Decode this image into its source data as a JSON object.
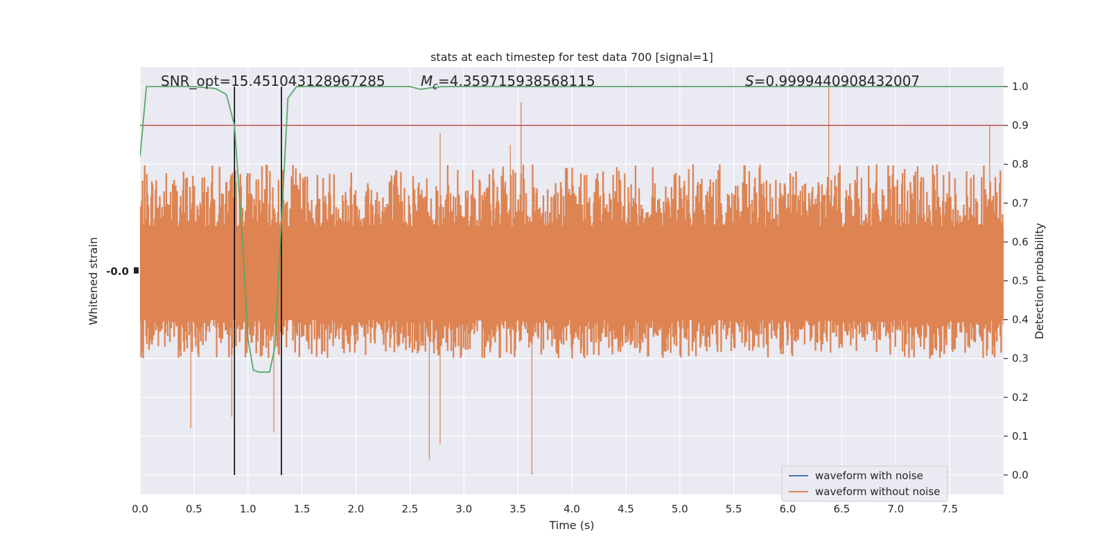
{
  "chart_data": {
    "type": "line",
    "title": "stats at each timestep for test data 700 [signal=1]",
    "xlabel": "Time (s)",
    "ylabel_left": "Whitened strain",
    "ylabel_right": "Detection probability",
    "xlim": [
      0.0,
      8.0
    ],
    "ylim_right": [
      -0.05,
      1.05
    ],
    "x_ticks": [
      "0.0",
      "0.5",
      "1.0",
      "1.5",
      "2.0",
      "2.5",
      "3.0",
      "3.5",
      "4.0",
      "4.5",
      "5.0",
      "5.5",
      "6.0",
      "6.5",
      "7.0",
      "7.5"
    ],
    "x_tick_values": [
      0.0,
      0.5,
      1.0,
      1.5,
      2.0,
      2.5,
      3.0,
      3.5,
      4.0,
      4.5,
      5.0,
      5.5,
      6.0,
      6.5,
      7.0,
      7.5
    ],
    "y_ticks_right": [
      "0.0",
      "0.1",
      "0.2",
      "0.3",
      "0.4",
      "0.5",
      "0.6",
      "0.7",
      "0.8",
      "0.9",
      "1.0"
    ],
    "y_tick_values_right": [
      0.0,
      0.1,
      0.2,
      0.3,
      0.4,
      0.5,
      0.6,
      0.7,
      0.8,
      0.9,
      1.0
    ],
    "left_tick_label": "-0.0",
    "annotations": {
      "snr": "SNR_opt=15.451043128967285",
      "mc_symbol": "M",
      "mc_sub": "c",
      "mc_value": "=4.359715938568115",
      "s_symbol": "S",
      "s_value": "=0.9999440908432007"
    },
    "threshold": {
      "y": 0.9,
      "color": "#c44e52"
    },
    "vertical_markers": [
      0.875,
      1.31
    ],
    "legend": {
      "placement": "lower-right",
      "entries": [
        {
          "label": "waveform with noise",
          "color": "#4c72b0"
        },
        {
          "label": "waveform without noise",
          "color": "#dd8452"
        }
      ]
    },
    "strain_series": {
      "name": "waveform without noise",
      "color": "#dd8452",
      "center": 0.515,
      "typical_band": [
        0.4,
        0.64
      ],
      "spread_band": [
        0.3,
        0.8
      ],
      "spikes_high": [
        [
          3.43,
          0.85
        ],
        [
          3.53,
          0.96
        ],
        [
          6.38,
          1.0
        ],
        [
          7.87,
          0.9
        ],
        [
          2.78,
          0.88
        ]
      ],
      "spikes_low": [
        [
          0.47,
          0.12
        ],
        [
          0.85,
          0.15
        ],
        [
          1.24,
          0.11
        ],
        [
          2.68,
          0.04
        ],
        [
          2.78,
          0.08
        ],
        [
          3.63,
          0.0
        ]
      ]
    },
    "probability_series": {
      "name": "detection probability",
      "color": "#55a868",
      "x": [
        0.0,
        0.06,
        0.15,
        0.5,
        0.7,
        0.8,
        0.875,
        0.95,
        1.0,
        1.05,
        1.1,
        1.2,
        1.25,
        1.31,
        1.37,
        1.45,
        2.5,
        2.6,
        2.7,
        2.8,
        3.0,
        4.0,
        8.0
      ],
      "y": [
        0.82,
        1.0,
        1.0,
        1.0,
        0.995,
        0.98,
        0.9,
        0.6,
        0.35,
        0.27,
        0.265,
        0.265,
        0.33,
        0.65,
        0.97,
        1.0,
        1.0,
        0.993,
        0.997,
        1.0,
        1.0,
        1.0,
        1.0
      ]
    }
  }
}
